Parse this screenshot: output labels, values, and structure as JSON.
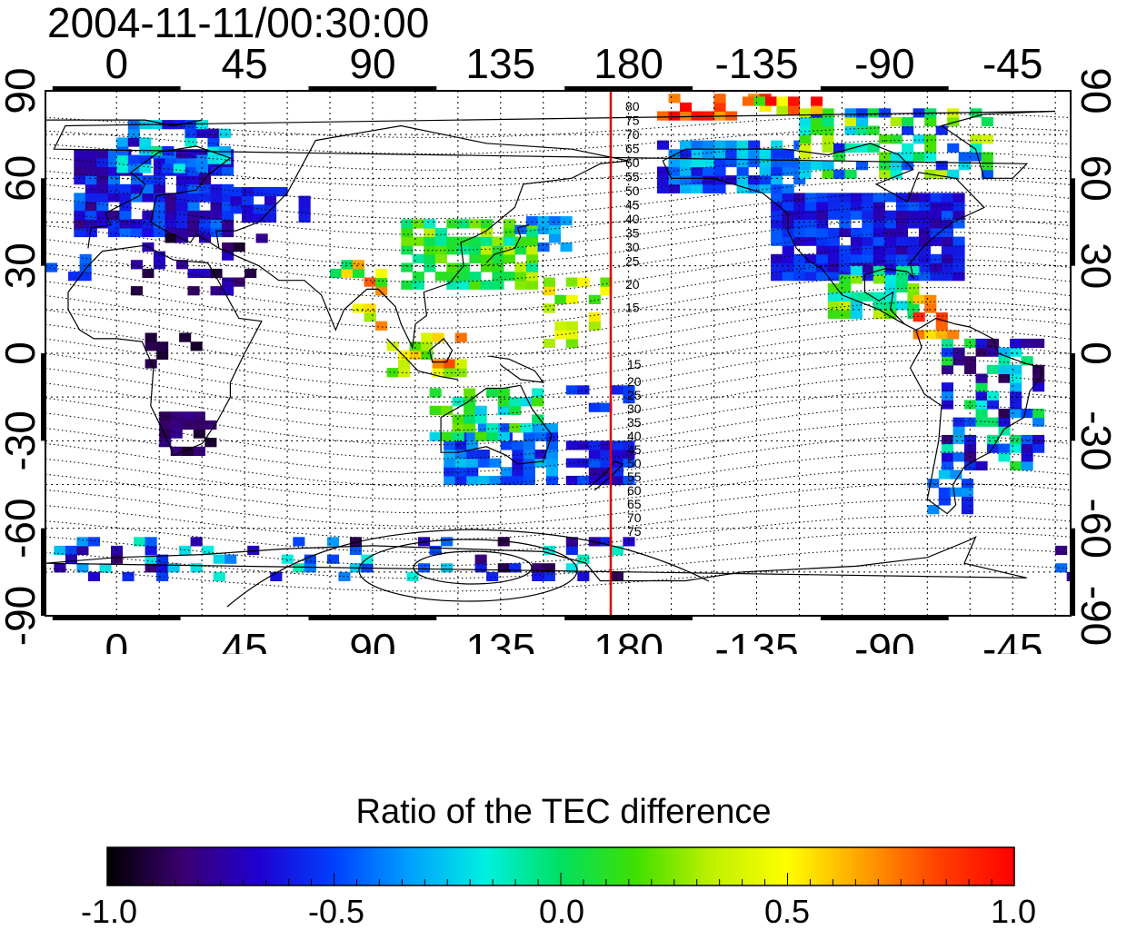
{
  "title": "2004-11-11/00:30:00",
  "map": {
    "lon_tick_labels": [
      "0",
      "45",
      "90",
      "135",
      "180",
      "-135",
      "-90",
      "-45"
    ],
    "lat_tick_labels": [
      "90",
      "60",
      "30",
      "0",
      "-30",
      "-60",
      "-90"
    ],
    "contour_labels_north": [
      "80",
      "75",
      "70",
      "65",
      "60",
      "55",
      "50",
      "45",
      "40",
      "35",
      "30",
      "25",
      "20",
      "15"
    ],
    "contour_labels_south": [
      "15",
      "20",
      "25",
      "30",
      "35",
      "40",
      "45",
      "50",
      "55",
      "60",
      "65",
      "70",
      "75"
    ],
    "meridian_line_color": "#e00000",
    "grid": "dotted"
  },
  "colorbar": {
    "title": "Ratio of the TEC difference",
    "tick_labels": [
      "-1.0",
      "-0.5",
      "0.0",
      "0.5",
      "1.0"
    ],
    "range": [
      -1.0,
      1.0
    ],
    "colors": [
      "#000000",
      "#3a0070",
      "#2000d0",
      "#0040ff",
      "#00a0ff",
      "#00f0e0",
      "#00e060",
      "#40e000",
      "#c0f000",
      "#ffff00",
      "#ffa000",
      "#ff4000",
      "#ff0000"
    ]
  }
}
